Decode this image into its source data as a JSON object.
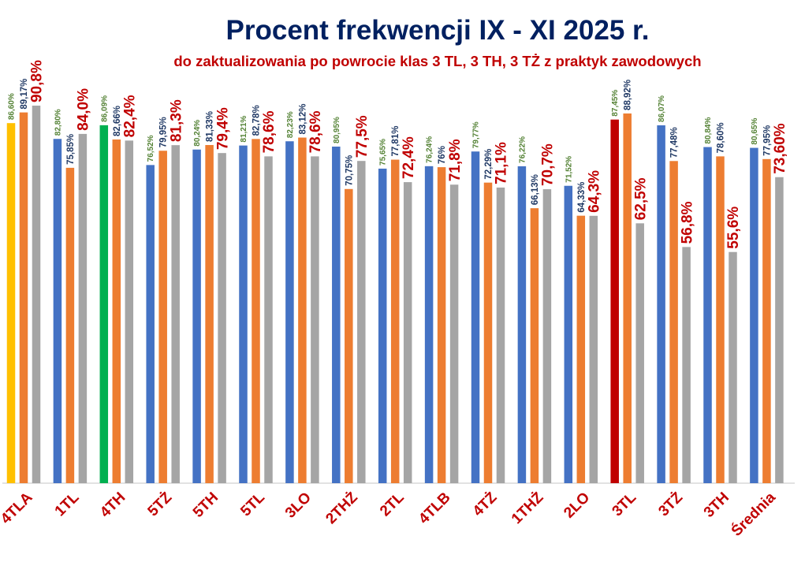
{
  "chart_data": {
    "type": "bar",
    "title": "Procent frekwencji IX - XI 2025 r.",
    "subtitle": "do zaktualizowania po powrocie klas 3 TL, 3 TH, 3 TŻ z praktyk zawodowych",
    "xlabel": "",
    "ylabel": "",
    "ylim": [
      0,
      116
    ],
    "grid": false,
    "legend": "none",
    "categories": [
      "4TLA",
      "1TL",
      "4TH",
      "5TŻ",
      "5TH",
      "5TL",
      "3LO",
      "2THŻ",
      "2TL",
      "4TLB",
      "4TŻ",
      "1THŻ",
      "2LO",
      "3TL",
      "3TŻ",
      "3TH",
      "Średnia"
    ],
    "series": [
      {
        "values": [
          86.6,
          82.8,
          86.09,
          76.52,
          80.24,
          81.21,
          82.23,
          80.95,
          75.65,
          76.24,
          79.77,
          76.22,
          71.52,
          87.45,
          86.07,
          80.84,
          80.65
        ],
        "labels": [
          "86,60%",
          "82,80%",
          "86,09%",
          "76,52%",
          "80,24%",
          "81,21%",
          "82,23%",
          "80,95%",
          "75,65%",
          "76,24%",
          "79,77%",
          "76,22%",
          "71,52%",
          "87,45%",
          "86,07%",
          "80,84%",
          "80,65%"
        ],
        "color": "#4472C4",
        "label_color": "#548235",
        "highlight_colors": {
          "0": "#FFC000",
          "2": "#00B050",
          "13": "#C00000"
        }
      },
      {
        "values": [
          89.17,
          75.85,
          82.66,
          79.95,
          81.33,
          82.78,
          83.12,
          70.75,
          77.81,
          76,
          72.29,
          66.13,
          64.33,
          88.92,
          77.48,
          78.6,
          77.95
        ],
        "labels": [
          "89,17%",
          "75,85%",
          "82,66%",
          "79,95%",
          "81,33%",
          "82,78%",
          "83,12%",
          "70,75%",
          "77,81%",
          "76%",
          "72,29%",
          "66,13%",
          "64,33%",
          "88,92%",
          "77,48%",
          "78,60%",
          "77,95%"
        ],
        "color": "#ED7D31",
        "label_color": "#1F3864"
      },
      {
        "values": [
          90.8,
          84.0,
          82.4,
          81.3,
          79.4,
          78.6,
          78.6,
          77.5,
          72.4,
          71.8,
          71.1,
          70.7,
          64.3,
          62.5,
          56.8,
          55.6,
          73.6
        ],
        "labels": [
          "90,8%",
          "84,0%",
          "82,4%",
          "81,3%",
          "79,4%",
          "78,6%",
          "78,6%",
          "77,5%",
          "72,4%",
          "71,8%",
          "71,1%",
          "70,7%",
          "64,3%",
          "62,5%",
          "56,8%",
          "55,6%",
          "73,60%"
        ],
        "color": "#A5A5A5",
        "label_color": "#C00000"
      }
    ],
    "title_color": "#002060",
    "subtitle_color": "#C00000",
    "category_label_color": "#C00000"
  }
}
